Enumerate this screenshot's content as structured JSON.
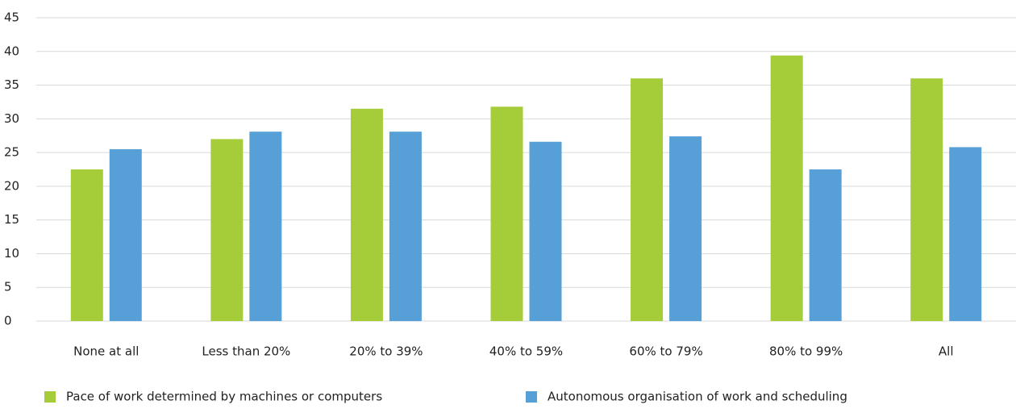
{
  "chart_data": {
    "type": "bar",
    "categories": [
      "None at all",
      "Less than 20%",
      "20% to 39%",
      "40% to 59%",
      "60% to 79%",
      "80% to 99%",
      "All"
    ],
    "series": [
      {
        "name": "Pace of work determined by machines or computers",
        "color": "#a5cd39",
        "values": [
          22.5,
          27.0,
          31.5,
          31.8,
          36.0,
          39.4,
          36.0
        ]
      },
      {
        "name": "Autonomous organisation of work and scheduling",
        "color": "#569fd7",
        "values": [
          25.5,
          28.1,
          28.1,
          26.6,
          27.4,
          22.5,
          25.8
        ]
      }
    ],
    "ylim": [
      0,
      45
    ],
    "yticks": [
      0,
      5,
      10,
      15,
      20,
      25,
      30,
      35,
      40,
      45
    ],
    "grid": true,
    "legend": "bottom"
  }
}
